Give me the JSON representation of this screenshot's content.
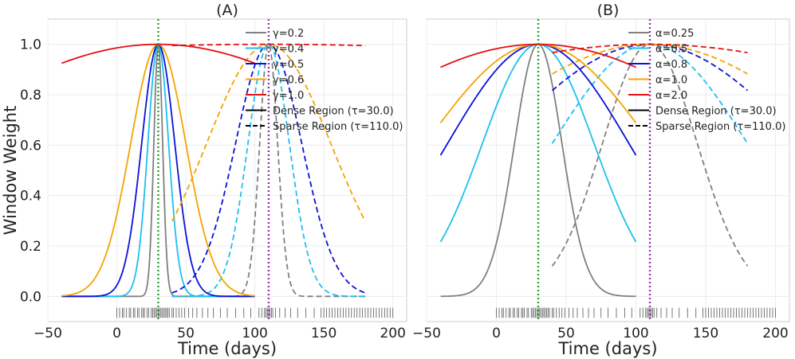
{
  "chart_data": [
    {
      "type": "line",
      "title": "(A)",
      "xlabel": "Time (days)",
      "ylabel": "Window Weight",
      "xlim": [
        -50,
        210
      ],
      "ylim": [
        -0.1,
        1.1
      ],
      "xticks": [
        -50,
        0,
        50,
        100,
        150,
        200
      ],
      "xtick_labels": [
        "−50",
        "0",
        "50",
        "100",
        "150",
        "200"
      ],
      "yticks": [
        0.0,
        0.2,
        0.4,
        0.6,
        0.8,
        1.0
      ],
      "ytick_labels": [
        "0.0",
        "0.2",
        "0.4",
        "0.6",
        "0.8",
        "1.0"
      ],
      "grid": true,
      "legend_position": "top-right",
      "shape": "gaussian",
      "dense_tau": 30,
      "sparse_tau": 110,
      "dense_range": [
        -40,
        100
      ],
      "sparse_range": [
        40,
        180
      ],
      "series": [
        {
          "name": "γ=0.2",
          "color": "#808080",
          "sigma_dense": 3.2,
          "sigma_sparse": 6.5
        },
        {
          "name": "γ=0.4",
          "color": "#1ec0f0",
          "sigma_dense": 7.5,
          "sigma_sparse": 15
        },
        {
          "name": "γ=0.5",
          "color": "#0a12d6",
          "sigma_dense": 12,
          "sigma_sparse": 24
        },
        {
          "name": "γ=0.6",
          "color": "#f5a300",
          "sigma_dense": 20,
          "sigma_sparse": 45
        },
        {
          "name": "γ=1.0",
          "color": "#e60f0f",
          "sigma_dense": 177,
          "sigma_sparse": 700
        }
      ],
      "legend_entries": [
        "γ=0.2",
        "γ=0.4",
        "γ=0.5",
        "γ=0.6",
        "γ=1.0",
        "Dense Region (τ=30.0)",
        "Sparse Region (τ=110.0)"
      ],
      "vlines": [
        {
          "x": 30,
          "color": "#22a32a"
        },
        {
          "x": 110,
          "color": "#9b30b0"
        }
      ]
    },
    {
      "type": "line",
      "title": "(B)",
      "xlabel": "Time (days)",
      "ylabel": "",
      "xlim": [
        -50,
        210
      ],
      "ylim": [
        -0.1,
        1.1
      ],
      "xticks": [
        -50,
        0,
        50,
        100,
        150,
        200
      ],
      "xtick_labels": [
        "−50",
        "0",
        "50",
        "100",
        "150",
        "200"
      ],
      "yticks": [
        0.0,
        0.2,
        0.4,
        0.6,
        0.8,
        1.0
      ],
      "grid": true,
      "legend_position": "top-right",
      "shape": "gaussian",
      "dense_tau": 30,
      "sparse_tau": 110,
      "dense_range": [
        -40,
        100
      ],
      "sparse_range": [
        40,
        180
      ],
      "series": [
        {
          "name": "α=0.25",
          "color": "#808080",
          "sigma_dense": 17,
          "sigma_sparse": 34
        },
        {
          "name": "α=0.5",
          "color": "#1ec0f0",
          "sigma_dense": 40,
          "sigma_sparse": 70
        },
        {
          "name": "α=0.8",
          "color": "#0a12d6",
          "sigma_dense": 65,
          "sigma_sparse": 110
        },
        {
          "name": "α=1.0",
          "color": "#f5a300",
          "sigma_dense": 81,
          "sigma_sparse": 140
        },
        {
          "name": "α=2.0",
          "color": "#e60f0f",
          "sigma_dense": 160,
          "sigma_sparse": 270
        }
      ],
      "legend_entries": [
        "α=0.25",
        "α=0.5",
        "α=0.8",
        "α=1.0",
        "α=2.0",
        "Dense Region (τ=30.0)",
        "Sparse Region (τ=110.0)"
      ],
      "vlines": [
        {
          "x": 30,
          "color": "#22a32a"
        },
        {
          "x": 110,
          "color": "#9b30b0"
        }
      ]
    }
  ],
  "observation_times": [
    0,
    2,
    4,
    5,
    7,
    9,
    10,
    12,
    13,
    15,
    16,
    18,
    19,
    20,
    22,
    23,
    25,
    26,
    27,
    28,
    29,
    30,
    31,
    32,
    33,
    34,
    35,
    36,
    37,
    38,
    40,
    41,
    43,
    45,
    47,
    49,
    52,
    55,
    58,
    62,
    66,
    70,
    75,
    80,
    86,
    92,
    97,
    103,
    105,
    107,
    108,
    109,
    110,
    111,
    112,
    113,
    115,
    118,
    122,
    126,
    131,
    137,
    143,
    148,
    150,
    152,
    154,
    156,
    158,
    160,
    162,
    164,
    166,
    168,
    170,
    172,
    174,
    176,
    178,
    180,
    182,
    184,
    186,
    188,
    190,
    192,
    194,
    196,
    198,
    200
  ]
}
